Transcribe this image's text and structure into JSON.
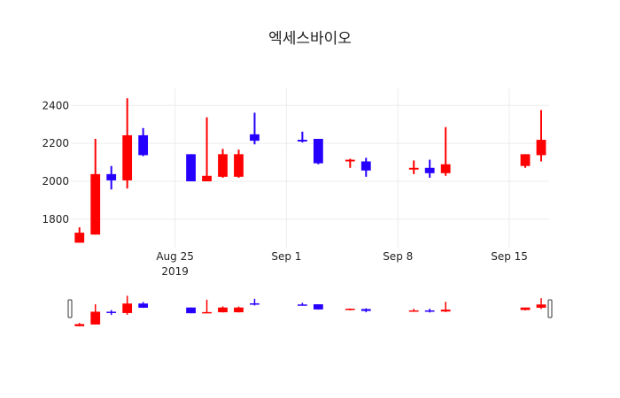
{
  "chart_data": {
    "type": "candlestick",
    "title": "엑세스바이오",
    "xlabel": "",
    "ylabel": "",
    "ylim": [
      1650,
      2490
    ],
    "xlim": [
      "2019-08-18T11:00",
      "2019-09-17T12:00"
    ],
    "grid": true,
    "legend": null,
    "increasing_color": "#ff0000",
    "decreasing_color": "#2600ff",
    "y_ticks": [
      1800,
      2000,
      2200,
      2400
    ],
    "x_ticks": [
      {
        "date": "2019-08-25",
        "label": "Aug 25",
        "sublabel": "2019"
      },
      {
        "date": "2019-09-01",
        "label": "Sep 1",
        "sublabel": ""
      },
      {
        "date": "2019-09-08",
        "label": "Sep 8",
        "sublabel": ""
      },
      {
        "date": "2019-09-15",
        "label": "Sep 15",
        "sublabel": ""
      }
    ],
    "candles": [
      {
        "date": "2019-08-19",
        "open": 1676,
        "high": 1757,
        "low": 1676,
        "close": 1729
      },
      {
        "date": "2019-08-20",
        "open": 1719,
        "high": 2224,
        "low": 1719,
        "close": 2038
      },
      {
        "date": "2019-08-21",
        "open": 2038,
        "high": 2081,
        "low": 1957,
        "close": 2005
      },
      {
        "date": "2019-08-22",
        "open": 2005,
        "high": 2438,
        "low": 1962,
        "close": 2243
      },
      {
        "date": "2019-08-23",
        "open": 2243,
        "high": 2281,
        "low": 2133,
        "close": 2138
      },
      {
        "date": "2019-08-26",
        "open": 2143,
        "high": 2143,
        "low": 2000,
        "close": 2000
      },
      {
        "date": "2019-08-27",
        "open": 2000,
        "high": 2338,
        "low": 2000,
        "close": 2029
      },
      {
        "date": "2019-08-28",
        "open": 2024,
        "high": 2171,
        "low": 2019,
        "close": 2143
      },
      {
        "date": "2019-08-29",
        "open": 2024,
        "high": 2167,
        "low": 2019,
        "close": 2143
      },
      {
        "date": "2019-08-30",
        "open": 2248,
        "high": 2362,
        "low": 2195,
        "close": 2214
      },
      {
        "date": "2019-09-02",
        "open": 2219,
        "high": 2262,
        "low": 2205,
        "close": 2210
      },
      {
        "date": "2019-09-03",
        "open": 2224,
        "high": 2224,
        "low": 2090,
        "close": 2095
      },
      {
        "date": "2019-09-05",
        "open": 2105,
        "high": 2119,
        "low": 2071,
        "close": 2114
      },
      {
        "date": "2019-09-06",
        "open": 2105,
        "high": 2124,
        "low": 2024,
        "close": 2057
      },
      {
        "date": "2019-09-09",
        "open": 2062,
        "high": 2110,
        "low": 2038,
        "close": 2071
      },
      {
        "date": "2019-09-10",
        "open": 2071,
        "high": 2114,
        "low": 2019,
        "close": 2043
      },
      {
        "date": "2019-09-11",
        "open": 2043,
        "high": 2286,
        "low": 2029,
        "close": 2090
      },
      {
        "date": "2019-09-16",
        "open": 2081,
        "high": 2143,
        "low": 2071,
        "close": 2143
      },
      {
        "date": "2019-09-17",
        "open": 2138,
        "high": 2376,
        "low": 2105,
        "close": 2219
      }
    ],
    "rangeslider": {
      "visible": true
    }
  }
}
